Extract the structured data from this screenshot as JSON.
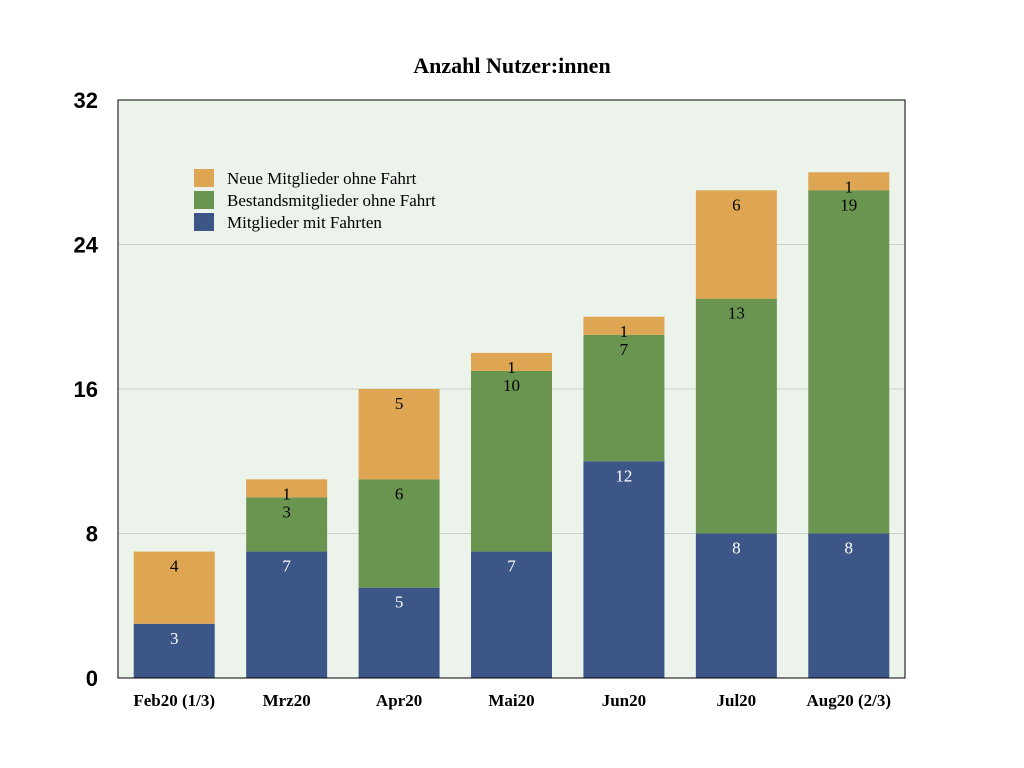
{
  "chart_data": {
    "type": "bar",
    "stacked": true,
    "title": "Anzahl Nutzer:innen",
    "xlabel": "",
    "ylabel": "",
    "categories": [
      "Feb20 (1/3)",
      "Mrz20",
      "Apr20",
      "Mai20",
      "Jun20",
      "Jul20",
      "Aug20 (2/3)"
    ],
    "ylim": [
      0,
      32
    ],
    "yticks": [
      "0",
      "8",
      "16",
      "24",
      "32"
    ],
    "grid": true,
    "legend_position": "top-left",
    "plot_background": "#ebf3eb",
    "series": [
      {
        "name": "Mitglieder mit Fahrten",
        "color": "#3b5687",
        "label_color": "#ffffff",
        "values": [
          3,
          7,
          5,
          7,
          12,
          8,
          8
        ],
        "labels": [
          "3",
          "7",
          "5",
          "7",
          "12",
          "8",
          "8"
        ]
      },
      {
        "name": "Bestandsmitglieder ohne Fahrt",
        "color": "#6a9550",
        "label_color": "#000000",
        "values": [
          0,
          3,
          6,
          10,
          7,
          13,
          19
        ],
        "labels": [
          "",
          "3",
          "6",
          "10",
          "7",
          "13",
          "19"
        ]
      },
      {
        "name": "Neue Mitglieder ohne Fahrt",
        "color": "#dea552",
        "label_color": "#000000",
        "values": [
          4,
          1,
          5,
          1,
          1,
          6,
          1
        ],
        "labels": [
          "4",
          "1",
          "5",
          "1",
          "1",
          "6",
          "1"
        ]
      }
    ],
    "legend_order": [
      "Neue Mitglieder ohne Fahrt",
      "Bestandsmitglieder ohne Fahrt",
      "Mitglieder mit Fahrten"
    ]
  }
}
